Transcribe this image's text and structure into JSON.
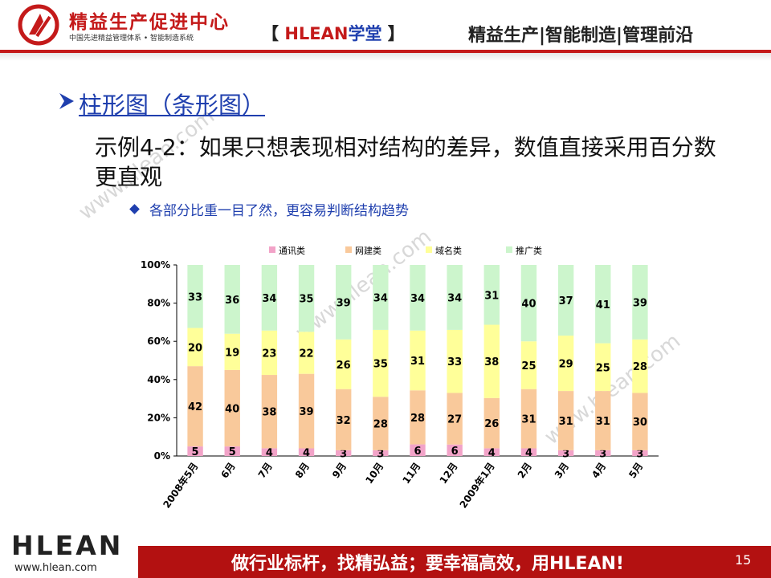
{
  "header": {
    "org_name": "精益生产促进中心",
    "org_sub": "中国先进精益管理体系 • 智能制造系统",
    "brand_left": "【 ",
    "brand_mark": "HLEAN",
    "brand_school": "学堂",
    "brand_right": " 】",
    "tagline": "精益生产|智能制造|管理前沿"
  },
  "slide": {
    "title": "柱形图（条形图）",
    "example": "示例4-2：如果只想表现相对结构的差异，数值直接采用百分数更直观",
    "bullet": "各部分比重一目了然，更容易判断结构趋势"
  },
  "watermark": "www.hlean.com",
  "footer": {
    "logo": "HLEAN",
    "url": "www.hlean.com",
    "slogan": "做行业标杆，找精弘益；要幸福高效，用HLEAN!",
    "page_number": "15"
  },
  "colors": {
    "brand_red": "#c41a1a",
    "title_blue": "#1f3fae",
    "series": [
      "#f2a3c8",
      "#f9c99b",
      "#ffff99",
      "#ccf5cc"
    ]
  },
  "chart_data": {
    "type": "bar",
    "stacked": "percent",
    "categories": [
      "2008年5月",
      "6月",
      "7月",
      "8月",
      "9月",
      "10月",
      "11月",
      "12月",
      "2009年1月",
      "2月",
      "3月",
      "4月",
      "5月"
    ],
    "series": [
      {
        "name": "通讯类",
        "values": [
          5,
          5,
          4,
          4,
          3,
          3,
          6,
          6,
          4,
          4,
          3,
          3,
          3
        ]
      },
      {
        "name": "网建类",
        "values": [
          42,
          40,
          38,
          39,
          32,
          28,
          28,
          27,
          26,
          31,
          31,
          31,
          30
        ]
      },
      {
        "name": "域名类",
        "values": [
          20,
          19,
          23,
          22,
          26,
          35,
          31,
          33,
          38,
          25,
          29,
          25,
          28
        ]
      },
      {
        "name": "推广类",
        "values": [
          33,
          36,
          34,
          35,
          39,
          34,
          34,
          34,
          31,
          40,
          37,
          41,
          39
        ]
      }
    ],
    "y_ticks": [
      "0%",
      "20%",
      "40%",
      "60%",
      "80%",
      "100%"
    ],
    "ylim": [
      0,
      100
    ],
    "legend": "top",
    "grid": false
  }
}
